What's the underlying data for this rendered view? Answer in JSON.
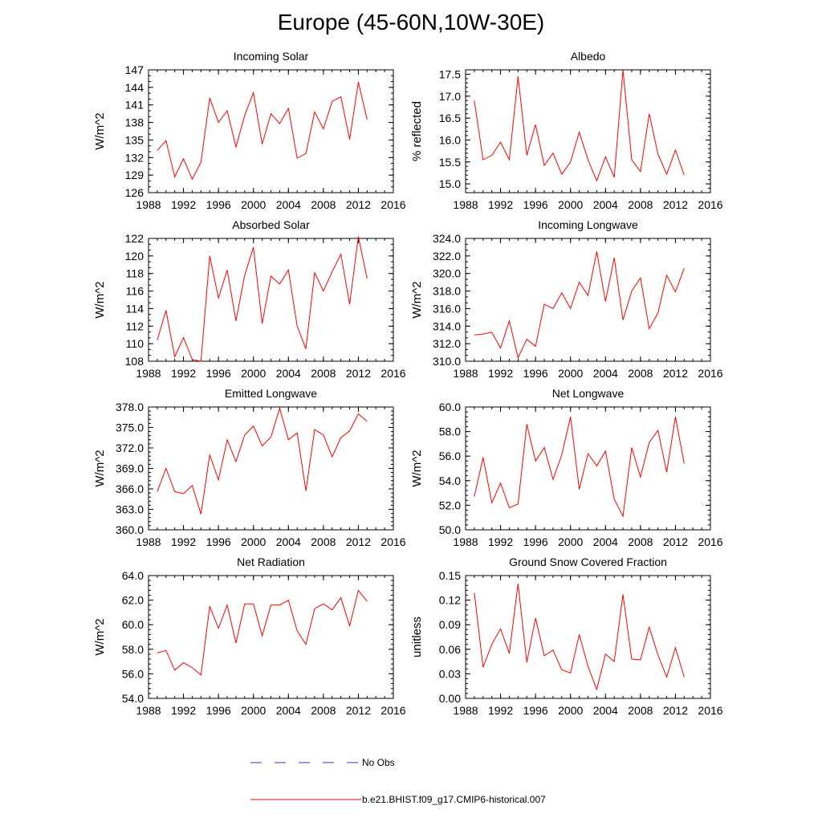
{
  "figure": {
    "title": "Europe (45-60N,10W-30E)"
  },
  "legend": [
    {
      "label": "No Obs",
      "color": "#3333cc",
      "style": "dashed"
    },
    {
      "label": "b.e21.BHIST.f09_g17.CMIP6-historical.007",
      "color": "#ff0000",
      "style": "solid"
    }
  ],
  "chart_data": [
    {
      "type": "line",
      "title": "Incoming Solar",
      "xlabel": "",
      "ylabel": "W/m^2",
      "xlim": [
        1988,
        2016
      ],
      "xticks": [
        1988,
        1992,
        1996,
        2000,
        2004,
        2008,
        2012,
        2016
      ],
      "ylim": [
        126,
        147
      ],
      "yticks": [
        "126",
        "129",
        "132",
        "135",
        "138",
        "141",
        "144",
        "147"
      ],
      "series": [
        {
          "color": "#ff0000",
          "x": [
            1989,
            1990,
            1991,
            1992,
            1993,
            1994,
            1995,
            1996,
            1997,
            1998,
            1999,
            2000,
            2001,
            2002,
            2003,
            2004,
            2005,
            2006,
            2007,
            2008,
            2009,
            2010,
            2011,
            2012,
            2013
          ],
          "y": [
            133.2,
            134.9,
            128.7,
            131.8,
            128.3,
            131.2,
            142.2,
            138.0,
            140.0,
            133.8,
            139.2,
            143.1,
            134.3,
            139.5,
            137.8,
            140.4,
            131.9,
            132.7,
            139.8,
            136.9,
            141.6,
            142.4,
            135.1,
            144.9,
            138.5
          ]
        }
      ]
    },
    {
      "type": "line",
      "title": "Albedo",
      "xlabel": "",
      "ylabel": "% reflected",
      "xlim": [
        1988,
        2016
      ],
      "xticks": [
        1988,
        1992,
        1996,
        2000,
        2004,
        2008,
        2012,
        2016
      ],
      "ylim": [
        14.8,
        17.6
      ],
      "yticks": [
        "15.0",
        "15.5",
        "16.0",
        "16.5",
        "17.0",
        "17.5"
      ],
      "series": [
        {
          "color": "#ff0000",
          "x": [
            1989,
            1990,
            1991,
            1992,
            1993,
            1994,
            1995,
            1996,
            1997,
            1998,
            1999,
            2000,
            2001,
            2002,
            2003,
            2004,
            2005,
            2006,
            2007,
            2008,
            2009,
            2010,
            2011,
            2012,
            2013
          ],
          "y": [
            16.9,
            15.55,
            15.65,
            15.95,
            15.55,
            17.45,
            15.65,
            16.35,
            15.42,
            15.7,
            15.22,
            15.5,
            16.18,
            15.55,
            15.07,
            15.62,
            15.15,
            17.6,
            15.55,
            15.28,
            16.6,
            15.68,
            15.22,
            15.77,
            15.2
          ]
        }
      ]
    },
    {
      "type": "line",
      "title": "Absorbed Solar",
      "xlabel": "",
      "ylabel": "W/m^2",
      "xlim": [
        1988,
        2016
      ],
      "xticks": [
        1988,
        1992,
        1996,
        2000,
        2004,
        2008,
        2012,
        2016
      ],
      "ylim": [
        108,
        122
      ],
      "yticks": [
        "108",
        "110",
        "112",
        "114",
        "116",
        "118",
        "120",
        "122"
      ],
      "series": [
        {
          "color": "#ff0000",
          "x": [
            1989,
            1990,
            1991,
            1992,
            1993,
            1994,
            1995,
            1996,
            1997,
            1998,
            1999,
            2000,
            2001,
            2002,
            2003,
            2004,
            2005,
            2006,
            2007,
            2008,
            2009,
            2010,
            2011,
            2012,
            2013
          ],
          "y": [
            110.4,
            113.8,
            108.5,
            110.7,
            108.2,
            108.0,
            120.0,
            115.2,
            118.4,
            112.6,
            117.8,
            121.0,
            112.3,
            117.7,
            116.8,
            118.4,
            112.0,
            109.4,
            118.1,
            116.0,
            118.2,
            120.2,
            114.5,
            122.2,
            117.4
          ]
        }
      ]
    },
    {
      "type": "line",
      "title": "Incoming Longwave",
      "xlabel": "",
      "ylabel": "W/m^2",
      "xlim": [
        1988,
        2016
      ],
      "xticks": [
        1988,
        1992,
        1996,
        2000,
        2004,
        2008,
        2012,
        2016
      ],
      "ylim": [
        310,
        324
      ],
      "yticks": [
        "310.0",
        "312.0",
        "314.0",
        "316.0",
        "318.0",
        "320.0",
        "322.0",
        "324.0"
      ],
      "series": [
        {
          "color": "#ff0000",
          "x": [
            1989,
            1990,
            1991,
            1992,
            1993,
            1994,
            1995,
            1996,
            1997,
            1998,
            1999,
            2000,
            2001,
            2002,
            2003,
            2004,
            2005,
            2006,
            2007,
            2008,
            2009,
            2010,
            2011,
            2012,
            2013
          ],
          "y": [
            313.0,
            313.1,
            313.3,
            311.5,
            314.6,
            310.4,
            312.5,
            311.7,
            316.5,
            316.0,
            317.8,
            316.0,
            319.0,
            317.5,
            322.5,
            316.8,
            321.8,
            314.7,
            318.0,
            319.5,
            313.7,
            315.5,
            319.8,
            317.9,
            320.6
          ]
        }
      ]
    },
    {
      "type": "line",
      "title": "Emitted Longwave",
      "xlabel": "",
      "ylabel": "W/m^2",
      "xlim": [
        1988,
        2016
      ],
      "xticks": [
        1988,
        1992,
        1996,
        2000,
        2004,
        2008,
        2012,
        2016
      ],
      "ylim": [
        360,
        378
      ],
      "yticks": [
        "360.0",
        "363.0",
        "366.0",
        "369.0",
        "372.0",
        "375.0",
        "378.0"
      ],
      "series": [
        {
          "color": "#ff0000",
          "x": [
            1989,
            1990,
            1991,
            1992,
            1993,
            1994,
            1995,
            1996,
            1997,
            1998,
            1999,
            2000,
            2001,
            2002,
            2003,
            2004,
            2005,
            2006,
            2007,
            2008,
            2009,
            2010,
            2011,
            2012,
            2013
          ],
          "y": [
            365.6,
            369.0,
            365.6,
            365.3,
            366.5,
            362.3,
            371.0,
            367.3,
            373.2,
            370.0,
            373.9,
            375.2,
            372.3,
            373.6,
            377.8,
            373.2,
            374.2,
            365.7,
            374.7,
            373.9,
            370.7,
            373.5,
            374.5,
            377.0,
            375.9
          ]
        }
      ]
    },
    {
      "type": "line",
      "title": "Net Longwave",
      "xlabel": "",
      "ylabel": "W/m^2",
      "xlim": [
        1988,
        2016
      ],
      "xticks": [
        1988,
        1992,
        1996,
        2000,
        2004,
        2008,
        2012,
        2016
      ],
      "ylim": [
        50,
        60
      ],
      "yticks": [
        "50.0",
        "52.0",
        "54.0",
        "56.0",
        "58.0",
        "60.0"
      ],
      "series": [
        {
          "color": "#ff0000",
          "x": [
            1989,
            1990,
            1991,
            1992,
            1993,
            1994,
            1995,
            1996,
            1997,
            1998,
            1999,
            2000,
            2001,
            2002,
            2003,
            2004,
            2005,
            2006,
            2007,
            2008,
            2009,
            2010,
            2011,
            2012,
            2013
          ],
          "y": [
            52.7,
            55.9,
            52.2,
            53.8,
            51.8,
            52.1,
            58.6,
            55.6,
            56.7,
            54.1,
            56.1,
            59.2,
            53.3,
            56.2,
            55.2,
            56.4,
            52.5,
            51.1,
            56.7,
            54.3,
            57.1,
            58.1,
            54.7,
            59.2,
            55.4
          ]
        }
      ]
    },
    {
      "type": "line",
      "title": "Net Radiation",
      "xlabel": "",
      "ylabel": "W/m^2",
      "xlim": [
        1988,
        2016
      ],
      "xticks": [
        1988,
        1992,
        1996,
        2000,
        2004,
        2008,
        2012,
        2016
      ],
      "ylim": [
        54,
        64
      ],
      "yticks": [
        "54.0",
        "56.0",
        "58.0",
        "60.0",
        "62.0",
        "64.0"
      ],
      "series": [
        {
          "color": "#ff0000",
          "x": [
            1989,
            1990,
            1991,
            1992,
            1993,
            1994,
            1995,
            1996,
            1997,
            1998,
            1999,
            2000,
            2001,
            2002,
            2003,
            2004,
            2005,
            2006,
            2007,
            2008,
            2009,
            2010,
            2011,
            2012,
            2013
          ],
          "y": [
            57.7,
            57.9,
            56.3,
            56.9,
            56.5,
            55.9,
            61.5,
            59.7,
            61.6,
            58.5,
            61.7,
            61.7,
            59.1,
            61.6,
            61.6,
            62.0,
            59.5,
            58.4,
            61.3,
            61.7,
            61.2,
            62.2,
            59.9,
            62.8,
            61.9
          ]
        }
      ]
    },
    {
      "type": "line",
      "title": "Ground Snow Covered Fraction",
      "xlabel": "",
      "ylabel": "unitless",
      "xlim": [
        1988,
        2016
      ],
      "xticks": [
        1988,
        1992,
        1996,
        2000,
        2004,
        2008,
        2012,
        2016
      ],
      "ylim": [
        0,
        0.15
      ],
      "yticks": [
        "0.00",
        "0.03",
        "0.06",
        "0.09",
        "0.12",
        "0.15"
      ],
      "series": [
        {
          "color": "#ff0000",
          "x": [
            1989,
            1990,
            1991,
            1992,
            1993,
            1994,
            1995,
            1996,
            1997,
            1998,
            1999,
            2000,
            2001,
            2002,
            2003,
            2004,
            2005,
            2006,
            2007,
            2008,
            2009,
            2010,
            2011,
            2012,
            2013
          ],
          "y": [
            0.129,
            0.038,
            0.066,
            0.085,
            0.055,
            0.14,
            0.044,
            0.098,
            0.052,
            0.059,
            0.035,
            0.031,
            0.078,
            0.039,
            0.011,
            0.054,
            0.045,
            0.127,
            0.048,
            0.047,
            0.087,
            0.053,
            0.026,
            0.062,
            0.026
          ]
        }
      ]
    }
  ]
}
